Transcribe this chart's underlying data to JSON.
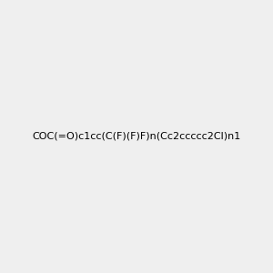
{
  "smiles": "COC(=O)c1cc(C(F)(F)F)n(Cc2ccccc2Cl)n1",
  "image_size": 300,
  "background_color": "#efefef",
  "title": ""
}
